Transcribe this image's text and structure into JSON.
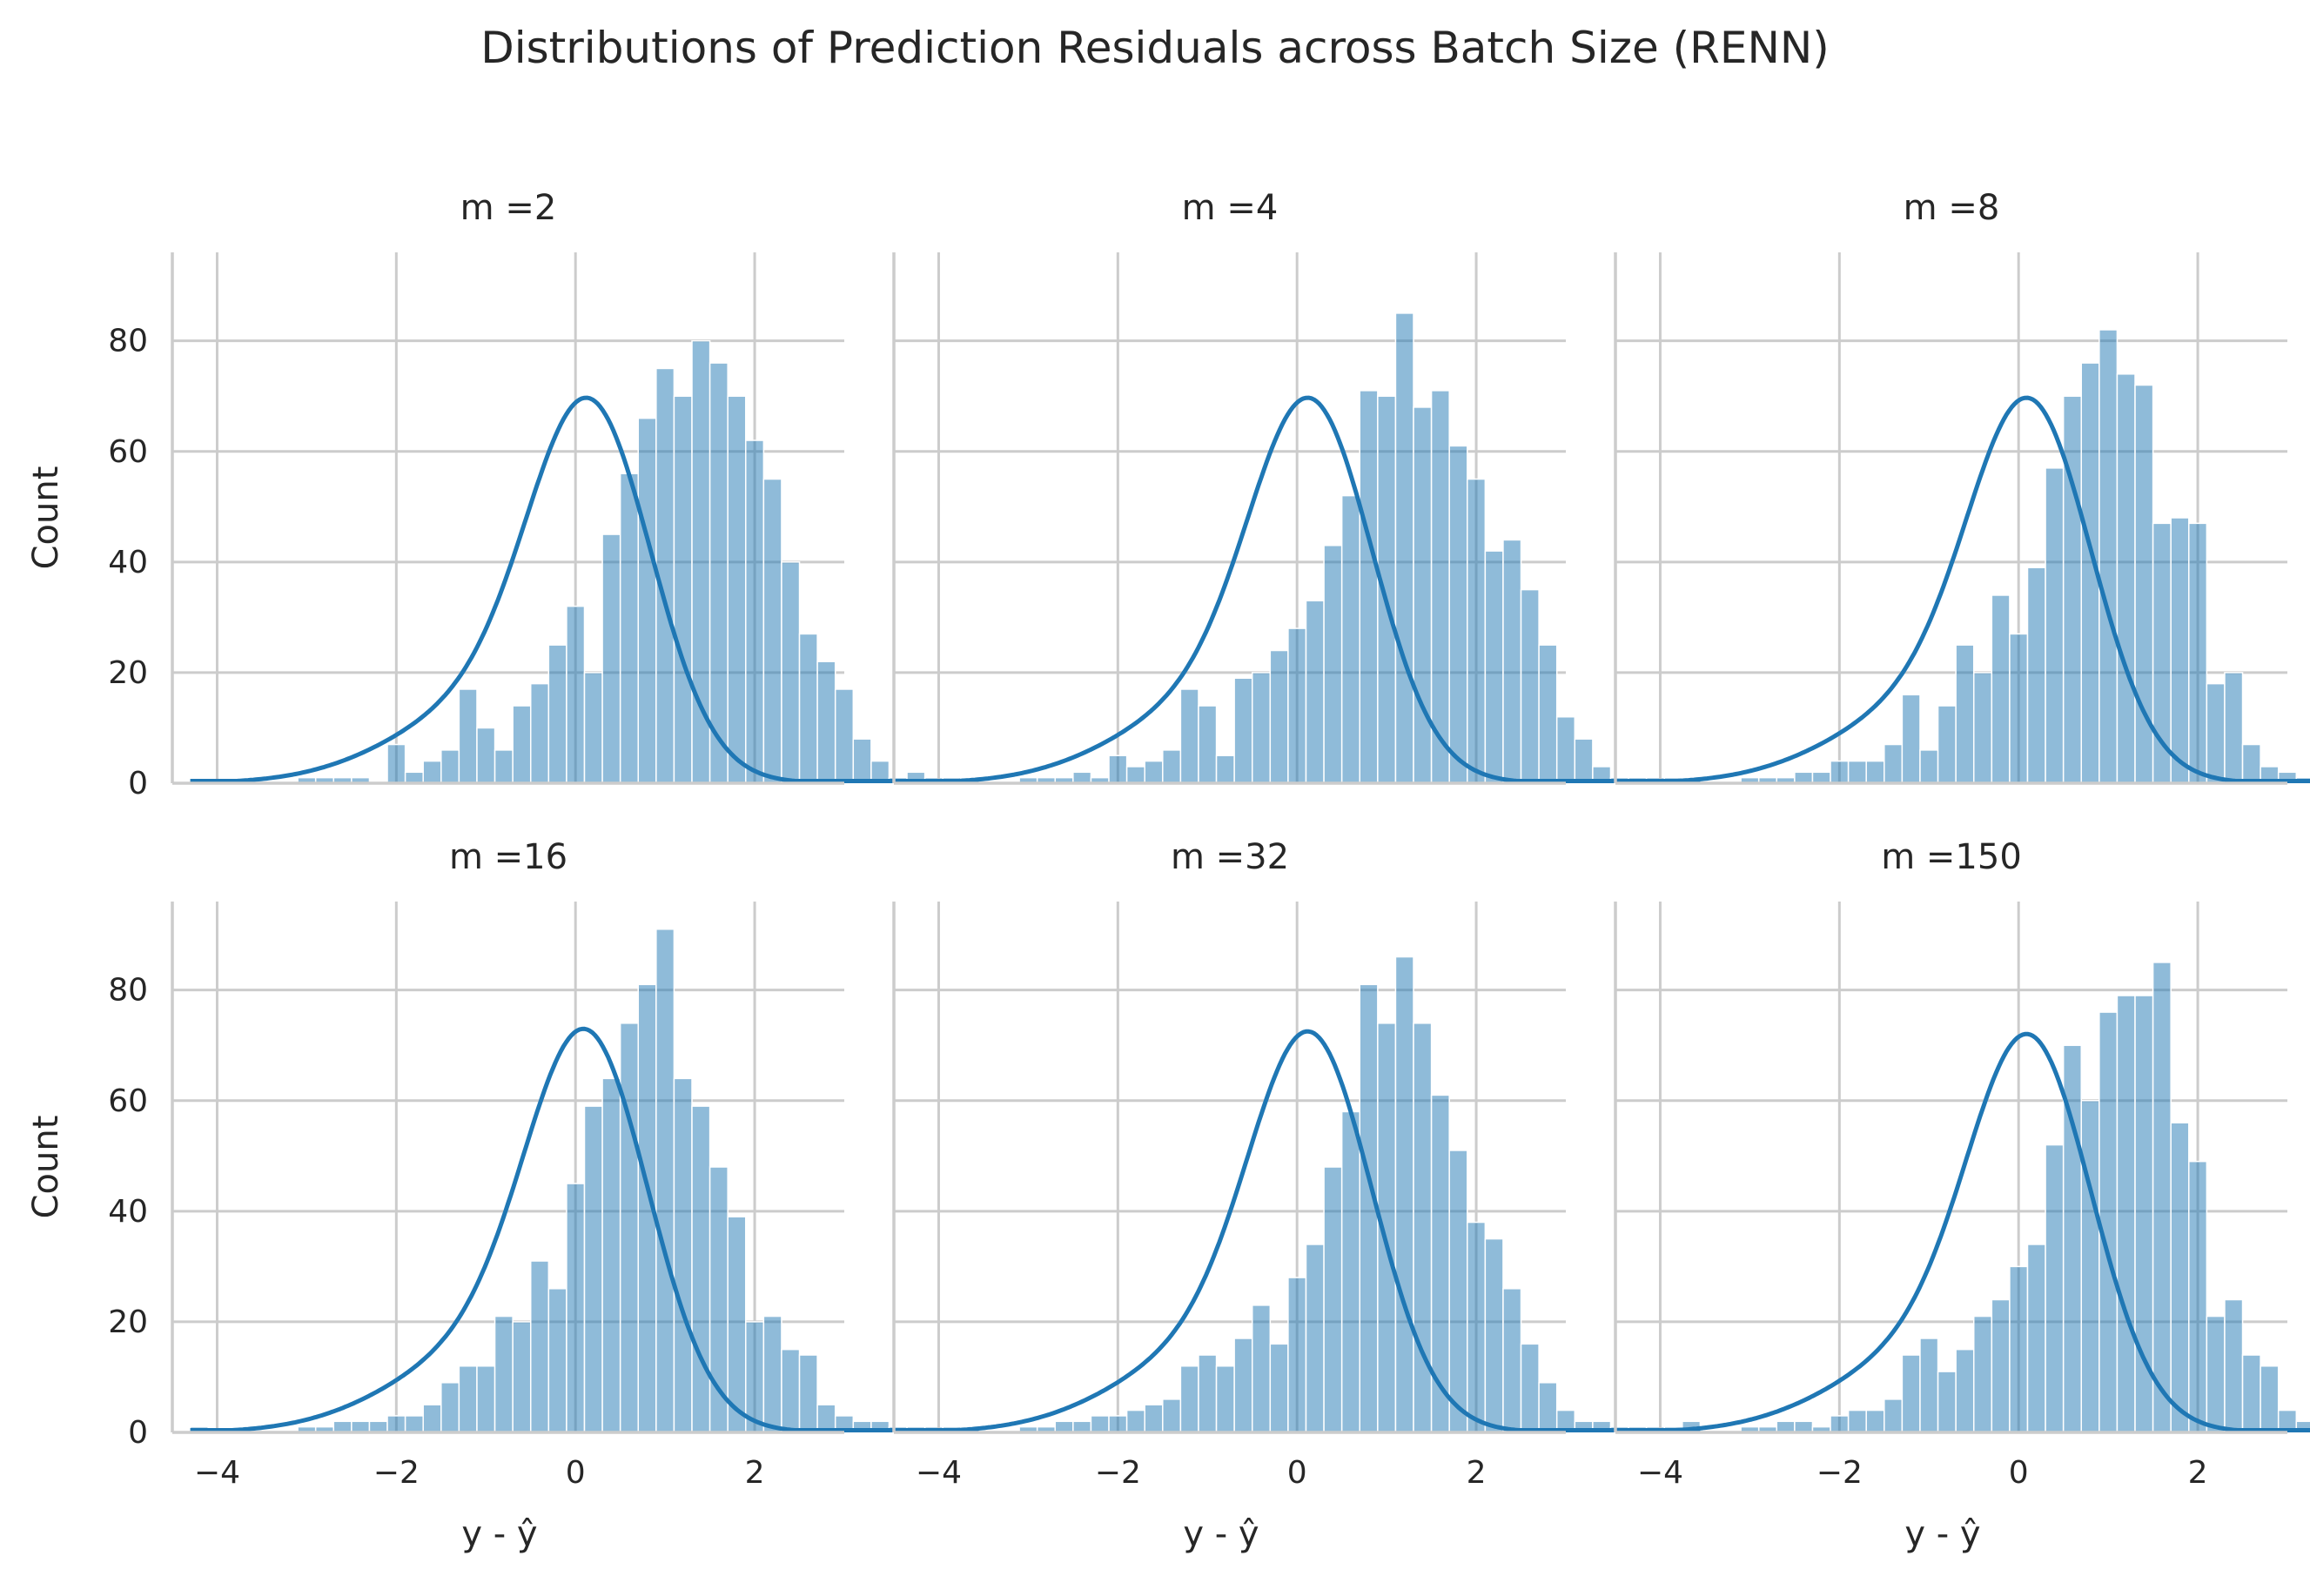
{
  "chart_data": {
    "title": "Distributions of Prediction Residuals across Batch Size (RENN)",
    "type": "bar",
    "bin_start": -4.3,
    "bin_width": 0.2,
    "xlim": [
      -4.5,
      3.0
    ],
    "ylim": [
      0,
      96
    ],
    "xticks": [
      -4,
      -2,
      0,
      2
    ],
    "xtick_labels": [
      "−4",
      "−2",
      "0",
      "2"
    ],
    "yticks": [
      0,
      20,
      40,
      60,
      80
    ],
    "ytick_labels": [
      "0",
      "20",
      "40",
      "60",
      "80"
    ],
    "xlabel": "y - ŷ",
    "ylabel": "Count",
    "panels": [
      {
        "title": "m =2",
        "values": [
          0,
          0,
          0,
          0,
          0,
          0,
          1,
          1,
          1,
          1,
          0,
          7,
          2,
          4,
          6,
          17,
          10,
          6,
          14,
          18,
          25,
          32,
          20,
          45,
          56,
          66,
          75,
          70,
          80,
          76,
          70,
          62,
          55,
          40,
          27,
          22,
          17,
          8,
          4,
          1,
          2,
          1,
          1,
          1
        ],
        "kde_peak": 74.5,
        "kde_center": 0.18
      },
      {
        "title": "m =4",
        "values": [
          0,
          0,
          0,
          0,
          0,
          0,
          1,
          1,
          1,
          2,
          1,
          5,
          3,
          4,
          6,
          17,
          14,
          5,
          19,
          20,
          24,
          28,
          33,
          43,
          52,
          71,
          70,
          85,
          68,
          71,
          61,
          55,
          42,
          44,
          35,
          25,
          12,
          8,
          3,
          1,
          1,
          1,
          1,
          1
        ],
        "kde_peak": 74.5,
        "kde_center": 0.18
      },
      {
        "title": "m =8",
        "values": [
          0,
          0,
          0,
          0,
          0,
          0,
          1,
          1,
          1,
          2,
          2,
          4,
          4,
          4,
          7,
          16,
          6,
          14,
          25,
          20,
          34,
          27,
          39,
          57,
          70,
          76,
          82,
          74,
          72,
          47,
          48,
          47,
          18,
          20,
          7,
          3,
          2,
          1,
          1,
          1,
          1,
          1,
          1,
          1
        ],
        "kde_peak": 74.5,
        "kde_center": 0.15
      },
      {
        "title": "m =16",
        "values": [
          1,
          0,
          0,
          0,
          0,
          0,
          1,
          1,
          2,
          2,
          2,
          3,
          3,
          5,
          9,
          12,
          12,
          21,
          20,
          31,
          26,
          45,
          59,
          64,
          74,
          81,
          91,
          64,
          59,
          48,
          39,
          20,
          21,
          15,
          14,
          5,
          3,
          2,
          2,
          1,
          1,
          1,
          1,
          1
        ],
        "kde_peak": 78.0,
        "kde_center": 0.15
      },
      {
        "title": "m =32",
        "values": [
          0,
          0,
          0,
          0,
          0,
          0,
          1,
          1,
          2,
          2,
          3,
          3,
          4,
          5,
          6,
          12,
          14,
          12,
          17,
          23,
          16,
          28,
          34,
          48,
          58,
          81,
          74,
          86,
          74,
          61,
          51,
          38,
          35,
          26,
          16,
          9,
          4,
          2,
          2,
          1,
          1,
          1,
          1,
          2
        ],
        "kde_peak": 77.5,
        "kde_center": 0.18
      },
      {
        "title": "m =150",
        "values": [
          0,
          0,
          0,
          0,
          0,
          0,
          1,
          1,
          2,
          2,
          1,
          3,
          4,
          4,
          6,
          14,
          17,
          11,
          15,
          21,
          24,
          30,
          34,
          52,
          70,
          60,
          76,
          79,
          79,
          85,
          56,
          49,
          21,
          24,
          14,
          12,
          4,
          2,
          2,
          1,
          1,
          1,
          1,
          2
        ],
        "kde_peak": 77.0,
        "kde_center": 0.15
      }
    ]
  }
}
